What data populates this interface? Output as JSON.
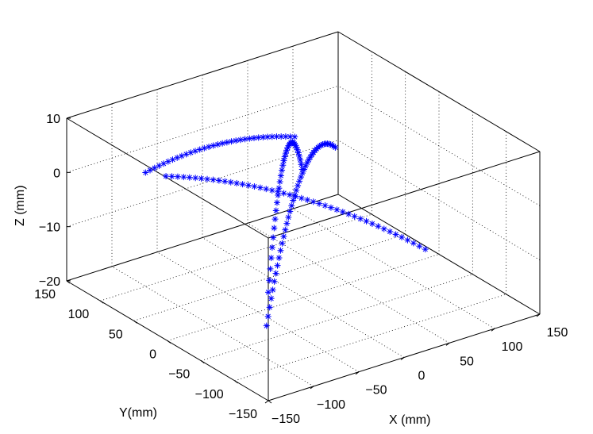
{
  "chart_data": {
    "type": "scatter3d",
    "marker": "*",
    "color": "#0000ff",
    "grid": true,
    "xlabel": "X (mm)",
    "ylabel": "Y(mm)",
    "zlabel": "Z (mm)",
    "xlim": [
      -150,
      150
    ],
    "ylim": [
      -150,
      150
    ],
    "zlim": [
      -20,
      10
    ],
    "xticks": [
      "−150",
      "−100",
      "−50",
      "0",
      "50",
      "100",
      "150"
    ],
    "yticks": [
      "−150",
      "−100",
      "−50",
      "0",
      "50",
      "100",
      "150"
    ],
    "zticks": [
      "−20",
      "−10",
      "0",
      "10"
    ],
    "series": [
      {
        "start": [
          -100,
          100,
          1
        ],
        "end": [
          -2,
          10,
          9
        ],
        "peak": 2,
        "n": 34
      },
      {
        "start": [
          -100,
          -80,
          -14
        ],
        "end": [
          80,
          60,
          -1
        ],
        "peak": 11,
        "n": 45
      },
      {
        "start": [
          -70,
          110,
          -2
        ],
        "end": [
          120,
          -20,
          -16
        ],
        "peak": 3,
        "n": 45
      },
      {
        "start": [
          -150,
          -150,
          0
        ],
        "end": [
          10,
          15,
          2
        ],
        "peak": 14,
        "n": 36
      }
    ]
  }
}
